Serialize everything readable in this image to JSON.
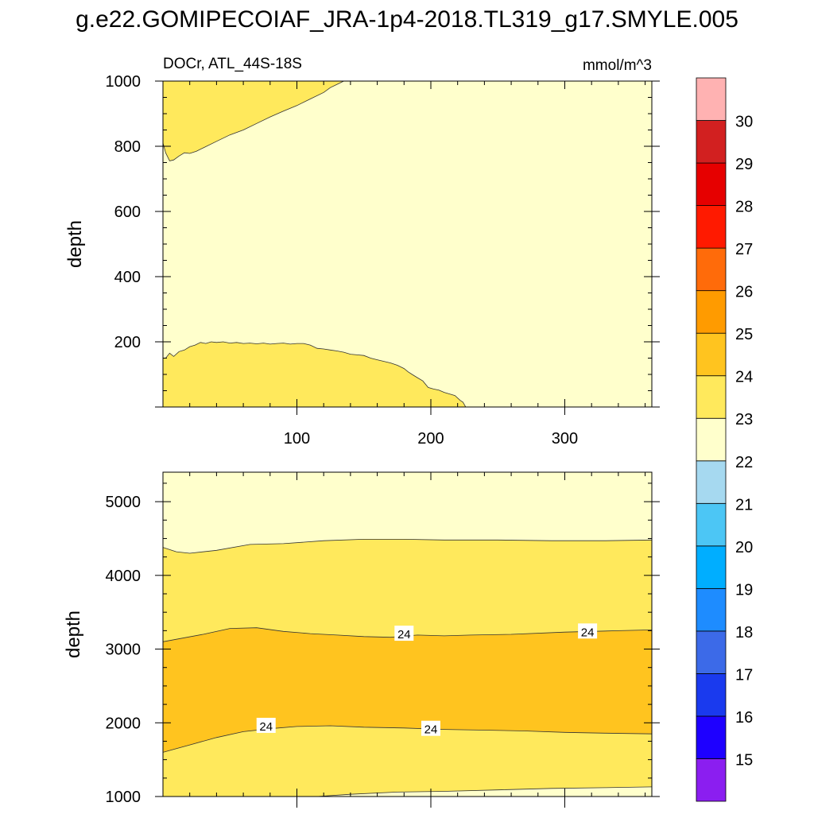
{
  "title": "g.e22.GOMIPECOIAF_JRA-1p4-2018.TL319_g17.SMYLE.005",
  "chart_data": [
    {
      "type": "contour",
      "panel": "upper",
      "left_title": "DOCr, ATL_44S-18S",
      "right_title": "mmol/m^3",
      "xlabel": "",
      "ylabel": "depth",
      "xlim": [
        0,
        365
      ],
      "ylim": [
        1000,
        0
      ],
      "xticks": [
        100,
        200,
        300
      ],
      "yticks": [
        200,
        400,
        600,
        800,
        1000
      ],
      "regions": [
        {
          "label": "22-23",
          "color": "#FFFFCC"
        },
        {
          "label": "23-24",
          "color": "#FFE95C",
          "name": "upper-shallow-23-24",
          "boundary": [
            [
              0,
              150
            ],
            [
              2,
              150
            ],
            [
              5,
              165
            ],
            [
              8,
              155
            ],
            [
              12,
              170
            ],
            [
              16,
              175
            ],
            [
              20,
              185
            ],
            [
              24,
              190
            ],
            [
              28,
              198
            ],
            [
              32,
              195
            ],
            [
              36,
              200
            ],
            [
              40,
              198
            ],
            [
              45,
              200
            ],
            [
              50,
              196
            ],
            [
              55,
              198
            ],
            [
              60,
              195
            ],
            [
              65,
              196
            ],
            [
              70,
              194
            ],
            [
              75,
              196
            ],
            [
              80,
              193
            ],
            [
              85,
              195
            ],
            [
              90,
              196
            ],
            [
              95,
              193
            ],
            [
              100,
              195
            ],
            [
              105,
              195
            ],
            [
              110,
              190
            ],
            [
              115,
              180
            ],
            [
              120,
              178
            ],
            [
              125,
              175
            ],
            [
              130,
              172
            ],
            [
              135,
              168
            ],
            [
              140,
              162
            ],
            [
              145,
              160
            ],
            [
              150,
              158
            ],
            [
              155,
              150
            ],
            [
              160,
              145
            ],
            [
              165,
              140
            ],
            [
              170,
              135
            ],
            [
              175,
              128
            ],
            [
              180,
              118
            ],
            [
              183,
              108
            ],
            [
              186,
              100
            ],
            [
              190,
              90
            ],
            [
              194,
              80
            ],
            [
              198,
              60
            ],
            [
              202,
              55
            ],
            [
              206,
              52
            ],
            [
              210,
              45
            ],
            [
              214,
              40
            ],
            [
              218,
              35
            ],
            [
              222,
              20
            ],
            [
              224,
              15
            ],
            [
              226,
              0
            ]
          ]
        },
        {
          "label": "23-24",
          "color": "#FFE95C",
          "name": "upper-deep-23-24",
          "boundary": [
            [
              0,
              810
            ],
            [
              2,
              780
            ],
            [
              5,
              755
            ],
            [
              8,
              758
            ],
            [
              12,
              770
            ],
            [
              16,
              780
            ],
            [
              20,
              778
            ],
            [
              25,
              785
            ],
            [
              30,
              795
            ],
            [
              40,
              815
            ],
            [
              50,
              835
            ],
            [
              60,
              850
            ],
            [
              70,
              870
            ],
            [
              80,
              890
            ],
            [
              90,
              908
            ],
            [
              100,
              925
            ],
            [
              110,
              945
            ],
            [
              120,
              965
            ],
            [
              125,
              980
            ],
            [
              130,
              990
            ],
            [
              135,
              1000
            ]
          ]
        }
      ]
    },
    {
      "type": "contour",
      "panel": "lower",
      "xlabel": "",
      "ylabel": "depth",
      "xlim": [
        0,
        365
      ],
      "ylim": [
        5400,
        1000
      ],
      "yticks": [
        1000,
        2000,
        3000,
        4000,
        5000
      ],
      "regions": [
        {
          "label": "22-23 top",
          "color": "#FFFFCC",
          "boundary": [
            [
              0,
              1000
            ],
            [
              115,
              1000
            ],
            [
              140,
              1030
            ],
            [
              175,
              1060
            ],
            [
              210,
              1070
            ],
            [
              250,
              1090
            ],
            [
              290,
              1110
            ],
            [
              330,
              1120
            ],
            [
              365,
              1130
            ]
          ]
        },
        {
          "label": "24-25",
          "color": "#FFC41F",
          "upper": [
            [
              0,
              1600
            ],
            [
              20,
              1700
            ],
            [
              40,
              1800
            ],
            [
              60,
              1880
            ],
            [
              80,
              1920
            ],
            [
              100,
              1950
            ],
            [
              125,
              1960
            ],
            [
              150,
              1940
            ],
            [
              180,
              1930
            ],
            [
              210,
              1910
            ],
            [
              240,
              1900
            ],
            [
              270,
              1890
            ],
            [
              300,
              1870
            ],
            [
              330,
              1860
            ],
            [
              365,
              1850
            ]
          ],
          "lower": [
            [
              0,
              3100
            ],
            [
              30,
              3200
            ],
            [
              50,
              3280
            ],
            [
              70,
              3290
            ],
            [
              90,
              3240
            ],
            [
              110,
              3210
            ],
            [
              130,
              3190
            ],
            [
              150,
              3170
            ],
            [
              170,
              3160
            ],
            [
              190,
              3190
            ],
            [
              210,
              3180
            ],
            [
              230,
              3190
            ],
            [
              260,
              3200
            ],
            [
              300,
              3230
            ],
            [
              340,
              3250
            ],
            [
              365,
              3260
            ]
          ]
        },
        {
          "label": "22-23 bottom",
          "color": "#FFFFCC",
          "boundary": [
            [
              0,
              4380
            ],
            [
              10,
              4320
            ],
            [
              20,
              4300
            ],
            [
              40,
              4340
            ],
            [
              65,
              4420
            ],
            [
              90,
              4430
            ],
            [
              120,
              4470
            ],
            [
              150,
              4490
            ],
            [
              180,
              4490
            ],
            [
              210,
              4480
            ],
            [
              250,
              4480
            ],
            [
              290,
              4470
            ],
            [
              330,
              4470
            ],
            [
              365,
              4480
            ]
          ]
        }
      ],
      "contour_labels": [
        {
          "text": "24",
          "x": 77,
          "y": 1960
        },
        {
          "text": "24",
          "x": 200,
          "y": 1920
        },
        {
          "text": "24",
          "x": 180,
          "y": 3210
        },
        {
          "text": "24",
          "x": 317,
          "y": 3240
        }
      ]
    }
  ],
  "colorbar": {
    "colors": [
      "#8B1EF0",
      "#1E00FF",
      "#1A3AEE",
      "#3C6AE8",
      "#1E8CFF",
      "#00AEFF",
      "#4CC6F5",
      "#A6D9F0",
      "#FFFFCC",
      "#FFE95C",
      "#FFC41F",
      "#FF9B00",
      "#FF6B0A",
      "#FF1A00",
      "#E60000",
      "#D22020",
      "#FFB2B2"
    ],
    "tick_labels": [
      "15",
      "16",
      "17",
      "18",
      "19",
      "20",
      "21",
      "22",
      "23",
      "24",
      "25",
      "26",
      "27",
      "28",
      "29",
      "30"
    ]
  }
}
